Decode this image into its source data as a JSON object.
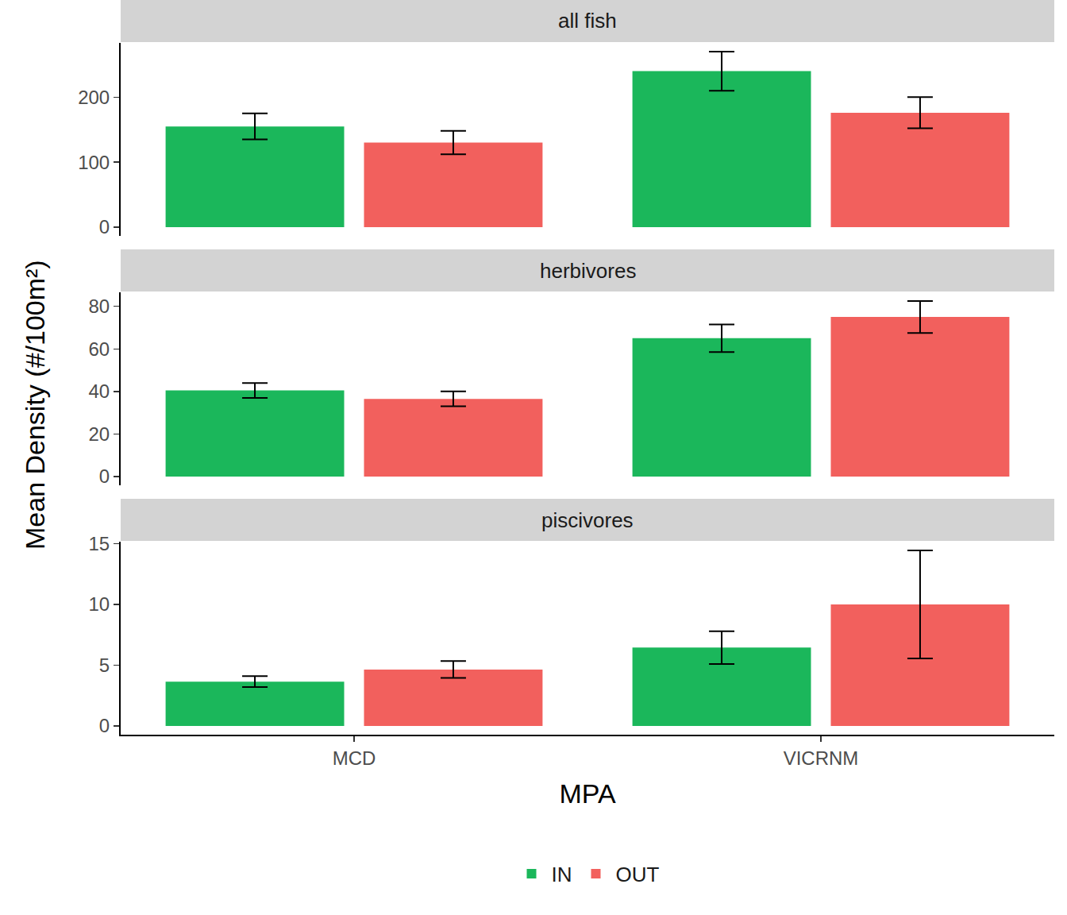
{
  "chart_data": [
    {
      "type": "bar",
      "title": "all fish",
      "categories": [
        "MCD",
        "VICRNM"
      ],
      "series": [
        {
          "name": "IN",
          "color": "#1BB75B",
          "values": [
            155,
            240
          ],
          "errors": [
            20,
            30
          ]
        },
        {
          "name": "OUT",
          "color": "#F2605D",
          "values": [
            130,
            176
          ],
          "errors": [
            18,
            24
          ]
        }
      ],
      "ylim": [
        -13.5,
        283.5
      ],
      "yticks": [
        0,
        100,
        200
      ],
      "grid": false
    },
    {
      "type": "bar",
      "title": "herbivores",
      "categories": [
        "MCD",
        "VICRNM"
      ],
      "series": [
        {
          "name": "IN",
          "color": "#1BB75B",
          "values": [
            40.5,
            65
          ],
          "errors": [
            3.5,
            6.5
          ]
        },
        {
          "name": "OUT",
          "color": "#F2605D",
          "values": [
            36.5,
            75
          ],
          "errors": [
            3.5,
            7.5
          ]
        }
      ],
      "ylim": [
        -4.1,
        86.6
      ],
      "yticks": [
        0,
        20,
        40,
        60,
        80
      ],
      "grid": false
    },
    {
      "type": "bar",
      "title": "piscivores",
      "categories": [
        "MCD",
        "VICRNM"
      ],
      "series": [
        {
          "name": "IN",
          "color": "#1BB75B",
          "values": [
            3.65,
            6.45
          ],
          "errors": [
            0.45,
            1.35
          ]
        },
        {
          "name": "OUT",
          "color": "#F2605D",
          "values": [
            4.65,
            10.0
          ],
          "errors": [
            0.7,
            4.45
          ]
        }
      ],
      "ylim": [
        -0.72,
        15.17
      ],
      "yticks": [
        0,
        5,
        10,
        15
      ],
      "grid": false
    }
  ],
  "x_label": "MPA",
  "y_label": "Mean Density (#/100m²)",
  "legend": "bottom"
}
